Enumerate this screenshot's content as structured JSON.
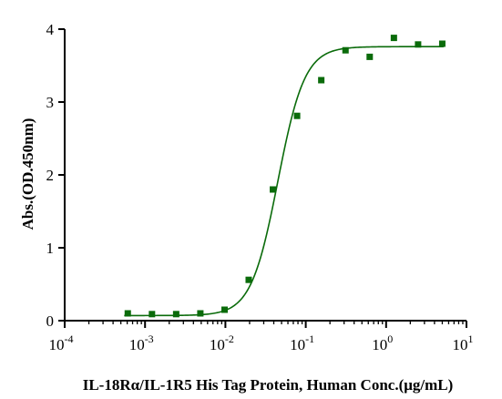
{
  "colors": {
    "series": "#0a6b0a",
    "axis": "#000000"
  },
  "chart_data": {
    "type": "scatter",
    "title": "",
    "xlabel": "IL-18Rα/IL-1R5 His Tag Protein, Human Conc.(μg/mL)",
    "ylabel": "Abs.(OD.450nm)",
    "x_scale": "log",
    "xlim": [
      0.0001,
      10
    ],
    "ylim": [
      0,
      4
    ],
    "x_ticks": [
      {
        "value": 0.0001,
        "base": "10",
        "exp": "-4"
      },
      {
        "value": 0.001,
        "base": "10",
        "exp": "-3"
      },
      {
        "value": 0.01,
        "base": "10",
        "exp": "-2"
      },
      {
        "value": 0.1,
        "base": "10",
        "exp": "-1"
      },
      {
        "value": 1,
        "base": "10",
        "exp": "0"
      },
      {
        "value": 10,
        "base": "10",
        "exp": "1"
      }
    ],
    "y_ticks": [
      {
        "value": 0,
        "label": "0"
      },
      {
        "value": 1,
        "label": "1"
      },
      {
        "value": 2,
        "label": "2"
      },
      {
        "value": 3,
        "label": "3"
      },
      {
        "value": 4,
        "label": "4"
      }
    ],
    "grid": false,
    "legend": "none",
    "series": [
      {
        "points": [
          {
            "x": 0.00061,
            "y": 0.1
          },
          {
            "x": 0.00122,
            "y": 0.09
          },
          {
            "x": 0.00244,
            "y": 0.09
          },
          {
            "x": 0.00488,
            "y": 0.1
          },
          {
            "x": 0.00977,
            "y": 0.15
          },
          {
            "x": 0.0195,
            "y": 0.56
          },
          {
            "x": 0.039,
            "y": 1.8
          },
          {
            "x": 0.078,
            "y": 2.81
          },
          {
            "x": 0.156,
            "y": 3.3
          },
          {
            "x": 0.3125,
            "y": 3.71
          },
          {
            "x": 0.625,
            "y": 3.62
          },
          {
            "x": 1.25,
            "y": 3.88
          },
          {
            "x": 2.5,
            "y": 3.79
          },
          {
            "x": 5,
            "y": 3.8
          }
        ],
        "fit": {
          "model": "4PL",
          "bottom": 0.07,
          "top": 3.76,
          "ec50": 0.045,
          "hill": 2.6
        }
      }
    ]
  }
}
